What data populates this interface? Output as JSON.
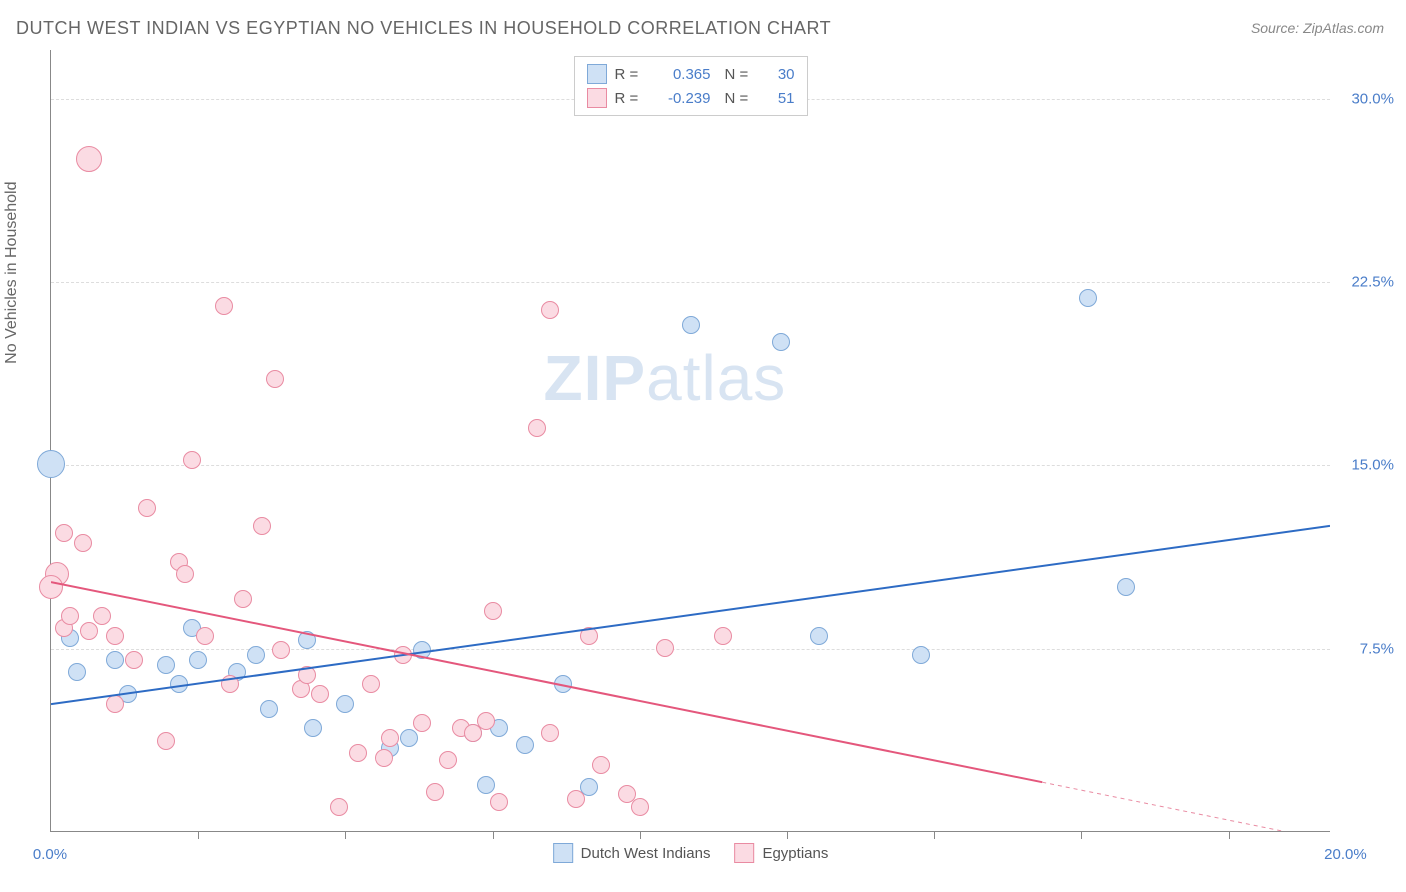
{
  "title": "DUTCH WEST INDIAN VS EGYPTIAN NO VEHICLES IN HOUSEHOLD CORRELATION CHART",
  "source": "Source: ZipAtlas.com",
  "ylabel": "No Vehicles in Household",
  "watermark": "ZIPatlas",
  "chart": {
    "type": "scatter",
    "background_color": "#ffffff",
    "grid_color": "#dddddd",
    "axis_color": "#888888",
    "tick_label_color": "#4a7dc9",
    "title_color": "#666666",
    "title_fontsize": 18,
    "label_fontsize": 16,
    "tick_fontsize": 15,
    "xlim": [
      0,
      20
    ],
    "ylim": [
      0,
      32
    ],
    "x_zero_label": "0.0%",
    "x_max_label": "20.0%",
    "yticks": [
      7.5,
      15.0,
      22.5,
      30.0
    ],
    "ytick_labels": [
      "7.5%",
      "15.0%",
      "22.5%",
      "30.0%"
    ],
    "xtick_positions": [
      2.3,
      4.6,
      6.9,
      9.2,
      11.5,
      13.8,
      16.1,
      18.4
    ],
    "marker_radius": 9,
    "marker_stroke_width": 1.5,
    "series": [
      {
        "name": "Dutch West Indians",
        "color_fill": "#cfe1f5",
        "color_stroke": "#7fa9d8",
        "r": "0.365",
        "n": "30",
        "trend": {
          "x1": 0,
          "y1": 5.2,
          "x2": 20,
          "y2": 12.5,
          "color": "#2d6bc4",
          "width": 2
        },
        "points": [
          {
            "x": 0.0,
            "y": 15.0,
            "r": 14
          },
          {
            "x": 0.3,
            "y": 7.9
          },
          {
            "x": 0.4,
            "y": 6.5
          },
          {
            "x": 1.0,
            "y": 7.0
          },
          {
            "x": 1.2,
            "y": 5.6
          },
          {
            "x": 1.8,
            "y": 6.8
          },
          {
            "x": 2.0,
            "y": 6.0
          },
          {
            "x": 2.2,
            "y": 8.3
          },
          {
            "x": 2.3,
            "y": 7.0
          },
          {
            "x": 2.9,
            "y": 6.5
          },
          {
            "x": 3.2,
            "y": 7.2
          },
          {
            "x": 3.4,
            "y": 5.0
          },
          {
            "x": 4.0,
            "y": 7.8
          },
          {
            "x": 4.1,
            "y": 4.2
          },
          {
            "x": 4.6,
            "y": 5.2
          },
          {
            "x": 5.3,
            "y": 3.4
          },
          {
            "x": 5.6,
            "y": 3.8
          },
          {
            "x": 5.8,
            "y": 7.4
          },
          {
            "x": 6.6,
            "y": 4.0
          },
          {
            "x": 6.8,
            "y": 1.9
          },
          {
            "x": 7.0,
            "y": 4.2
          },
          {
            "x": 7.4,
            "y": 3.5
          },
          {
            "x": 8.0,
            "y": 6.0
          },
          {
            "x": 8.4,
            "y": 1.8
          },
          {
            "x": 10.0,
            "y": 20.7
          },
          {
            "x": 11.4,
            "y": 20.0
          },
          {
            "x": 12.0,
            "y": 8.0
          },
          {
            "x": 13.6,
            "y": 7.2
          },
          {
            "x": 16.8,
            "y": 10.0
          },
          {
            "x": 16.2,
            "y": 21.8
          }
        ]
      },
      {
        "name": "Egyptians",
        "color_fill": "#fbdbe3",
        "color_stroke": "#e98ba2",
        "r": "-0.239",
        "n": "51",
        "trend": {
          "x1": 0,
          "y1": 10.2,
          "x2": 15.5,
          "y2": 2.0,
          "color": "#e4577c",
          "width": 2,
          "dash_from_x": 15.5,
          "dash_to_x": 20,
          "dash_to_y": -0.4
        },
        "points": [
          {
            "x": 0.1,
            "y": 10.5,
            "r": 12
          },
          {
            "x": 0.0,
            "y": 10.0,
            "r": 12
          },
          {
            "x": 0.2,
            "y": 12.2
          },
          {
            "x": 0.2,
            "y": 8.3
          },
          {
            "x": 0.3,
            "y": 8.8
          },
          {
            "x": 0.5,
            "y": 11.8
          },
          {
            "x": 0.6,
            "y": 8.2
          },
          {
            "x": 0.6,
            "y": 27.5,
            "r": 13
          },
          {
            "x": 0.8,
            "y": 8.8
          },
          {
            "x": 1.0,
            "y": 8.0
          },
          {
            "x": 1.3,
            "y": 7.0
          },
          {
            "x": 1.5,
            "y": 13.2
          },
          {
            "x": 1.8,
            "y": 3.7
          },
          {
            "x": 2.0,
            "y": 11.0
          },
          {
            "x": 2.1,
            "y": 10.5
          },
          {
            "x": 2.2,
            "y": 15.2
          },
          {
            "x": 2.4,
            "y": 8.0
          },
          {
            "x": 2.7,
            "y": 21.5
          },
          {
            "x": 2.8,
            "y": 6.0
          },
          {
            "x": 3.3,
            "y": 12.5
          },
          {
            "x": 3.5,
            "y": 18.5
          },
          {
            "x": 3.6,
            "y": 7.4
          },
          {
            "x": 3.9,
            "y": 5.8
          },
          {
            "x": 4.0,
            "y": 6.4
          },
          {
            "x": 4.2,
            "y": 5.6
          },
          {
            "x": 4.5,
            "y": 1.0
          },
          {
            "x": 4.8,
            "y": 3.2
          },
          {
            "x": 5.0,
            "y": 6.0
          },
          {
            "x": 5.2,
            "y": 3.0
          },
          {
            "x": 5.3,
            "y": 3.8
          },
          {
            "x": 5.5,
            "y": 7.2
          },
          {
            "x": 5.8,
            "y": 4.4
          },
          {
            "x": 6.0,
            "y": 1.6
          },
          {
            "x": 6.2,
            "y": 2.9
          },
          {
            "x": 6.4,
            "y": 4.2
          },
          {
            "x": 6.6,
            "y": 4.0
          },
          {
            "x": 6.8,
            "y": 4.5
          },
          {
            "x": 7.0,
            "y": 1.2
          },
          {
            "x": 7.6,
            "y": 16.5
          },
          {
            "x": 7.8,
            "y": 21.3
          },
          {
            "x": 7.8,
            "y": 4.0
          },
          {
            "x": 8.2,
            "y": 1.3
          },
          {
            "x": 8.4,
            "y": 8.0
          },
          {
            "x": 8.6,
            "y": 2.7
          },
          {
            "x": 9.0,
            "y": 1.5
          },
          {
            "x": 9.2,
            "y": 1.0
          },
          {
            "x": 9.6,
            "y": 7.5
          },
          {
            "x": 10.5,
            "y": 8.0
          },
          {
            "x": 6.9,
            "y": 9.0
          },
          {
            "x": 3.0,
            "y": 9.5
          },
          {
            "x": 1.0,
            "y": 5.2
          }
        ]
      }
    ],
    "legend_bottom": [
      {
        "swatch_fill": "#cfe1f5",
        "swatch_stroke": "#7fa9d8",
        "label": "Dutch West Indians"
      },
      {
        "swatch_fill": "#fbdbe3",
        "swatch_stroke": "#e98ba2",
        "label": "Egyptians"
      }
    ]
  }
}
